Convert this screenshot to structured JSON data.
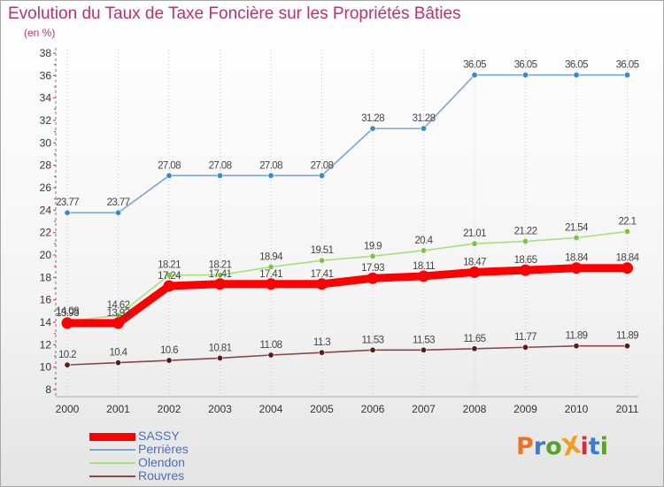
{
  "title": "Evolution du Taux de Taxe Foncière sur les Propriétés Bâties",
  "unit_label": "(en %)",
  "brand": {
    "text": "ProXiti",
    "colors": [
      "#e8732a",
      "#3a7bd5",
      "#5aa02c",
      "#f0a020",
      "#c8363a",
      "#3a7bd5",
      "#5aa02c"
    ]
  },
  "chart_data": {
    "type": "line",
    "title": "Evolution du Taux de Taxe Foncière sur les Propriétés Bâties",
    "ylabel": "(en %)",
    "xlabel": "",
    "x": [
      "2000",
      "2001",
      "2002",
      "2003",
      "2004",
      "2005",
      "2006",
      "2007",
      "2008",
      "2009",
      "2010",
      "2011"
    ],
    "ylim": [
      8,
      38
    ],
    "yticks": [
      "8",
      "10",
      "12",
      "14",
      "16",
      "18",
      "20",
      "22",
      "24",
      "26",
      "28",
      "30",
      "32",
      "34",
      "36",
      "38"
    ],
    "grid": "vertical-dotted",
    "legend_position": "bottom-left",
    "series": [
      {
        "name": "SASSY",
        "color": "#ff0000",
        "emphasis": true,
        "values": [
          13.93,
          13.93,
          17.24,
          17.41,
          17.41,
          17.41,
          17.93,
          18.11,
          18.47,
          18.65,
          18.84,
          18.84
        ],
        "labels": [
          "13.93",
          "13.93",
          "17.24",
          "17.41",
          "17.41",
          "17.41",
          "17.93",
          "18.11",
          "18.47",
          "18.65",
          "18.84",
          "18.84"
        ]
      },
      {
        "name": "Perrières",
        "color": "#7aa6d6",
        "marker_color": "#3a88c8",
        "values": [
          23.77,
          23.77,
          27.08,
          27.08,
          27.08,
          27.08,
          31.28,
          31.28,
          36.05,
          36.05,
          36.05,
          36.05
        ],
        "labels": [
          "23.77",
          "23.77",
          "27.08",
          "27.08",
          "27.08",
          "27.08",
          "31.28",
          "31.28",
          "36.05",
          "36.05",
          "36.05",
          "36.05"
        ]
      },
      {
        "name": "Olendon",
        "color": "#a6e07a",
        "marker_color": "#7cc440",
        "values": [
          14.08,
          14.62,
          18.21,
          18.21,
          18.94,
          19.51,
          19.9,
          20.4,
          21.01,
          21.22,
          21.54,
          22.1
        ],
        "labels": [
          "14.08",
          "14.62",
          "18.21",
          "18.21",
          "18.94",
          "19.51",
          "19.9",
          "20.4",
          "21.01",
          "21.22",
          "21.54",
          "22.1"
        ]
      },
      {
        "name": "Rouvres",
        "color": "#8a4646",
        "marker_color": "#5a1a1a",
        "values": [
          10.2,
          10.4,
          10.6,
          10.81,
          11.08,
          11.3,
          11.53,
          11.53,
          11.65,
          11.77,
          11.89,
          11.89
        ],
        "labels": [
          "10.2",
          "10.4",
          "10.6",
          "10.81",
          "11.08",
          "11.3",
          "11.53",
          "11.53",
          "11.65",
          "11.77",
          "11.89",
          "11.89"
        ]
      }
    ]
  }
}
